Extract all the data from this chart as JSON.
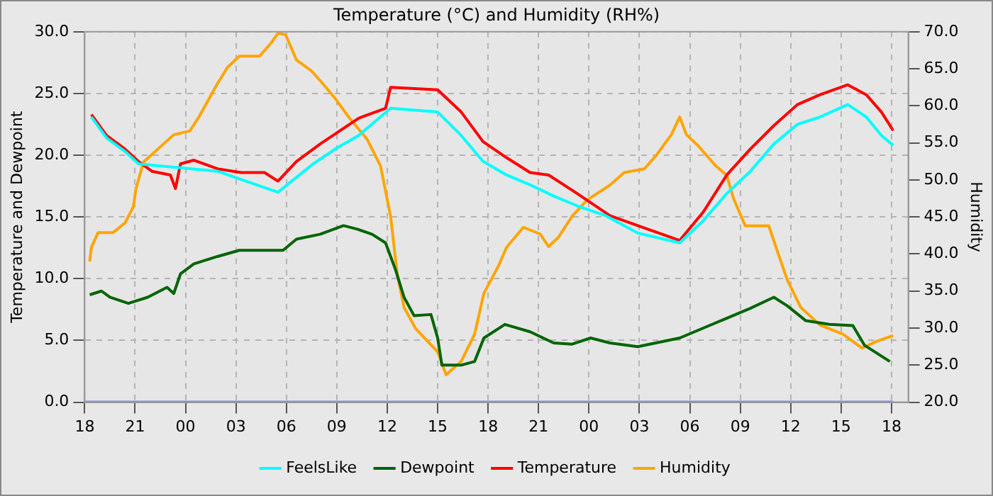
{
  "chart_data": {
    "type": "line",
    "title": "Temperature (°C) and Humidity (RH%)",
    "ylabel": "Temperature and Dewpoint",
    "y2label": "Humidity",
    "xlim": [
      18,
      67
    ],
    "xticks": [
      {
        "value": 18,
        "label": "18"
      },
      {
        "value": 21,
        "label": "21"
      },
      {
        "value": 24,
        "label": "00"
      },
      {
        "value": 27,
        "label": "03"
      },
      {
        "value": 30,
        "label": "06"
      },
      {
        "value": 33,
        "label": "09"
      },
      {
        "value": 36,
        "label": "12"
      },
      {
        "value": 39,
        "label": "15"
      },
      {
        "value": 42,
        "label": "18"
      },
      {
        "value": 45,
        "label": "21"
      },
      {
        "value": 48,
        "label": "00"
      },
      {
        "value": 51,
        "label": "03"
      },
      {
        "value": 54,
        "label": "06"
      },
      {
        "value": 57,
        "label": "09"
      },
      {
        "value": 60,
        "label": "12"
      },
      {
        "value": 63,
        "label": "15"
      },
      {
        "value": 66,
        "label": "18"
      }
    ],
    "ylim": [
      0,
      30
    ],
    "yticks": [
      {
        "value": 0,
        "label": "0.0"
      },
      {
        "value": 5,
        "label": "5.0"
      },
      {
        "value": 10,
        "label": "10.0"
      },
      {
        "value": 15,
        "label": "15.0"
      },
      {
        "value": 20,
        "label": "20.0"
      },
      {
        "value": 25,
        "label": "25.0"
      },
      {
        "value": 30,
        "label": "30.0"
      }
    ],
    "y2lim": [
      20,
      70
    ],
    "y2ticks": [
      {
        "value": 20,
        "label": "20.0"
      },
      {
        "value": 25,
        "label": "25.0"
      },
      {
        "value": 30,
        "label": "30.0"
      },
      {
        "value": 35,
        "label": "35.0"
      },
      {
        "value": 40,
        "label": "40.0"
      },
      {
        "value": 45,
        "label": "45.0"
      },
      {
        "value": 50,
        "label": "50.0"
      },
      {
        "value": 55,
        "label": "55.0"
      },
      {
        "value": 60,
        "label": "60.0"
      },
      {
        "value": 65,
        "label": "65.0"
      },
      {
        "value": 70,
        "label": "70.0"
      }
    ],
    "grid": true,
    "legend": "bottom",
    "marker": "none",
    "line_style": "solid",
    "series": [
      {
        "color": "#7f7fff",
        "x": [
          18,
          66.1
        ],
        "values": [
          0,
          0
        ]
      },
      {
        "name": "FeelsLike",
        "color": "#00ffff",
        "x": [
          18.4,
          19.3,
          20.4,
          21.2,
          25.9,
          29.5,
          31.5,
          32.9,
          34.3,
          36.2,
          39.0,
          40.4,
          41.7,
          43.1,
          44.5,
          45.9,
          47.3,
          49.0,
          50.9,
          53.4,
          54.8,
          56.2,
          57.6,
          59.0,
          60.4,
          61.75,
          63.4,
          64.5,
          65.4,
          66.1
        ],
        "values": [
          23.1,
          21.4,
          20.3,
          19.3,
          18.7,
          17.0,
          19.2,
          20.5,
          21.6,
          23.8,
          23.5,
          21.6,
          19.5,
          18.4,
          17.6,
          16.7,
          15.9,
          15.1,
          13.7,
          12.9,
          14.7,
          16.9,
          18.7,
          20.9,
          22.5,
          23.1,
          24.1,
          23.1,
          21.6,
          20.8
        ]
      },
      {
        "name": "Dewpoint",
        "color": "#006400",
        "x": [
          18.3,
          19.0,
          19.5,
          20.6,
          21.75,
          22.9,
          23.3,
          23.7,
          24.5,
          25.9,
          27.2,
          29.8,
          30.6,
          32.0,
          33.4,
          34.25,
          35.1,
          35.9,
          36.5,
          37.0,
          37.6,
          38.6,
          39.0,
          39.25,
          40.4,
          41.2,
          41.75,
          43.0,
          44.5,
          45.9,
          47.0,
          48.1,
          49.25,
          50.9,
          53.4,
          56.2,
          57.6,
          59.0,
          59.8,
          60.9,
          62.3,
          63.7,
          64.4,
          65.9
        ],
        "values": [
          8.7,
          9.0,
          8.5,
          8.0,
          8.5,
          9.3,
          8.8,
          10.4,
          11.2,
          11.8,
          12.3,
          12.3,
          13.2,
          13.6,
          14.3,
          14.0,
          13.6,
          12.9,
          10.7,
          8.5,
          7.0,
          7.1,
          5.2,
          3.0,
          3.0,
          3.3,
          5.2,
          6.3,
          5.7,
          4.8,
          4.7,
          5.2,
          4.8,
          4.5,
          5.2,
          6.8,
          7.6,
          8.5,
          7.8,
          6.6,
          6.3,
          6.2,
          4.6,
          3.3
        ]
      },
      {
        "name": "Temperature",
        "color": "#ff0000",
        "x": [
          18.4,
          19.3,
          20.4,
          21.2,
          22.0,
          23.1,
          23.4,
          23.7,
          24.5,
          25.9,
          27.3,
          28.7,
          29.5,
          30.6,
          32.0,
          33.1,
          34.3,
          35.9,
          36.2,
          39.0,
          40.4,
          41.7,
          43.1,
          44.5,
          45.6,
          47.3,
          49.25,
          50.9,
          53.4,
          54.8,
          56.2,
          57.6,
          59.0,
          60.4,
          61.75,
          63.4,
          64.5,
          65.4,
          66.1
        ],
        "values": [
          23.3,
          21.6,
          20.5,
          19.5,
          18.7,
          18.4,
          17.3,
          19.3,
          19.6,
          18.9,
          18.6,
          18.6,
          17.9,
          19.5,
          20.9,
          21.9,
          23.0,
          23.8,
          25.5,
          25.3,
          23.5,
          21.1,
          19.8,
          18.6,
          18.4,
          16.9,
          15.1,
          14.3,
          13.1,
          15.4,
          18.4,
          20.5,
          22.4,
          24.1,
          24.9,
          25.7,
          24.9,
          23.5,
          22.0
        ]
      },
      {
        "name": "Humidity",
        "color": "#ffa500",
        "axis": "y2",
        "x": [
          18.3,
          18.4,
          18.8,
          19.7,
          20.4,
          20.9,
          21.05,
          21.5,
          23.3,
          24.25,
          24.8,
          25.9,
          26.5,
          27.2,
          28.4,
          29.1,
          29.5,
          29.95,
          30.6,
          31.5,
          32.2,
          32.9,
          33.7,
          34.8,
          35.6,
          36.2,
          36.6,
          37.0,
          37.7,
          39.0,
          39.5,
          40.4,
          41.2,
          41.75,
          42.6,
          43.1,
          44.1,
          45.1,
          45.6,
          46.2,
          47.0,
          47.9,
          49.25,
          50.1,
          51.3,
          52.0,
          52.9,
          53.4,
          53.8,
          54.5,
          55.5,
          56.2,
          56.6,
          57.3,
          58.7,
          59.25,
          59.8,
          60.6,
          61.75,
          63.1,
          64.25,
          65.1,
          66.1
        ],
        "values": [
          39.0,
          40.9,
          42.9,
          42.9,
          44.2,
          46.4,
          48.8,
          52.4,
          56.1,
          56.6,
          58.5,
          63.0,
          65.2,
          66.7,
          66.7,
          68.5,
          69.8,
          69.6,
          66.2,
          64.7,
          62.9,
          61.0,
          58.5,
          55.5,
          51.9,
          45.1,
          37.2,
          32.8,
          29.9,
          26.8,
          23.7,
          25.5,
          29.2,
          34.7,
          38.3,
          40.9,
          43.6,
          42.7,
          41.0,
          42.3,
          45.1,
          47.3,
          49.3,
          51.0,
          51.5,
          53.3,
          56.1,
          58.5,
          56.1,
          54.6,
          52.0,
          50.6,
          47.5,
          43.8,
          43.8,
          40.1,
          36.5,
          32.8,
          30.4,
          29.2,
          27.3,
          28.2,
          29.0
        ]
      }
    ]
  }
}
